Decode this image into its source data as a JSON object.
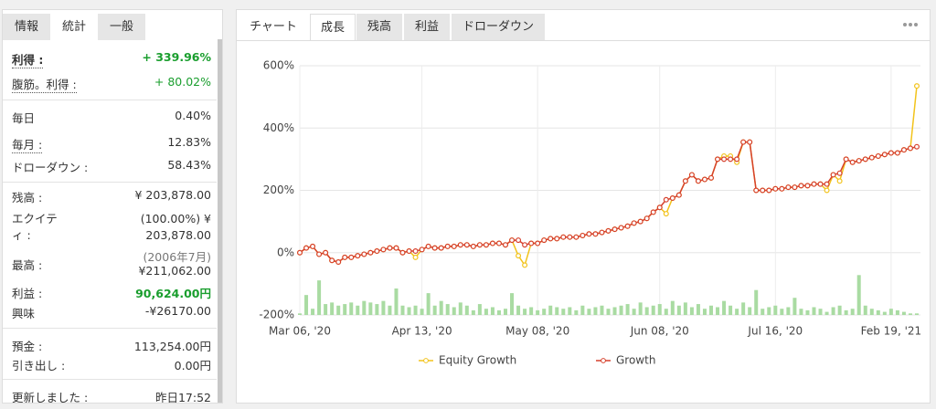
{
  "left_panel": {
    "tabs": [
      "情報",
      "統計",
      "一般"
    ],
    "rows": [
      {
        "label": "利得 :",
        "value": "+ 339.96%"
      },
      {
        "label": "腹筋。利得 :",
        "value": "+ 80.02%"
      },
      {
        "label": "毎日",
        "value": "0.40%"
      },
      {
        "label": "毎月 :",
        "value": "12.83%"
      },
      {
        "label": "ドローダウン :",
        "value": "58.43%"
      },
      {
        "label": "残高 :",
        "value": "¥ 203,878.00"
      },
      {
        "label": "エクイティ :",
        "value": "(100.00%) ¥ 203,878.00"
      },
      {
        "label": "最高 :",
        "note": "(2006年7月)",
        "value": "¥211,062.00"
      },
      {
        "label": "利益 :",
        "value": "90,624.00円"
      },
      {
        "label": "興味",
        "value": "-¥26170.00"
      },
      {
        "label": "預金 :",
        "value": "113,254.00円"
      },
      {
        "label": "引き出し :",
        "value": "0.00円"
      },
      {
        "label": "更新しました :",
        "value": "昨日17:52"
      }
    ]
  },
  "right_panel": {
    "tabs": [
      "チャート",
      "成長",
      "残高",
      "利益",
      "ドローダウン"
    ]
  },
  "chart_data": {
    "type": "line",
    "categories": [
      "Mar 06, '20",
      null,
      null,
      null,
      null,
      null,
      null,
      null,
      null,
      null,
      null,
      null,
      null,
      null,
      null,
      null,
      null,
      null,
      null,
      "Apr 13, '20",
      null,
      null,
      null,
      null,
      null,
      null,
      null,
      null,
      null,
      null,
      null,
      null,
      null,
      null,
      null,
      null,
      null,
      "May 08, '20",
      null,
      null,
      null,
      null,
      null,
      null,
      null,
      null,
      null,
      null,
      null,
      null,
      null,
      null,
      null,
      null,
      null,
      null,
      "Jun 08, '20",
      null,
      null,
      null,
      null,
      null,
      null,
      null,
      null,
      null,
      null,
      null,
      null,
      null,
      null,
      null,
      null,
      null,
      "Jul 16, '20",
      null,
      null,
      null,
      null,
      null,
      null,
      null,
      null,
      null,
      null,
      null,
      null,
      null,
      null,
      null,
      null,
      null,
      "Feb 19, '21",
      null,
      null,
      null,
      null
    ],
    "series": [
      {
        "name": "Equity Growth",
        "color": "#f2c31b",
        "values": [
          0,
          15,
          20,
          -5,
          0,
          -25,
          -30,
          -15,
          -15,
          -10,
          -5,
          0,
          5,
          10,
          15,
          15,
          0,
          5,
          -15,
          10,
          20,
          15,
          15,
          20,
          20,
          25,
          25,
          20,
          25,
          25,
          30,
          30,
          25,
          40,
          -10,
          -40,
          30,
          30,
          40,
          45,
          45,
          50,
          50,
          50,
          55,
          60,
          60,
          65,
          70,
          75,
          80,
          85,
          95,
          100,
          110,
          130,
          145,
          125,
          175,
          185,
          230,
          250,
          230,
          235,
          240,
          300,
          310,
          310,
          290,
          355,
          355,
          200,
          200,
          200,
          205,
          205,
          210,
          210,
          215,
          215,
          220,
          220,
          200,
          250,
          230,
          300,
          290,
          295,
          300,
          305,
          310,
          315,
          320,
          320,
          330,
          335,
          535
        ]
      },
      {
        "name": "Growth",
        "color": "#d6402c",
        "values": [
          0,
          15,
          20,
          -5,
          0,
          -25,
          -30,
          -15,
          -15,
          -10,
          -5,
          0,
          5,
          10,
          15,
          15,
          0,
          5,
          5,
          10,
          20,
          15,
          15,
          20,
          20,
          25,
          25,
          20,
          25,
          25,
          30,
          30,
          25,
          40,
          40,
          25,
          30,
          30,
          40,
          45,
          45,
          50,
          50,
          50,
          55,
          60,
          60,
          65,
          70,
          75,
          80,
          85,
          95,
          100,
          110,
          130,
          145,
          170,
          175,
          185,
          230,
          250,
          230,
          235,
          240,
          300,
          300,
          300,
          300,
          355,
          355,
          200,
          200,
          200,
          205,
          205,
          210,
          210,
          215,
          215,
          220,
          220,
          220,
          250,
          255,
          300,
          290,
          295,
          300,
          305,
          310,
          315,
          320,
          320,
          330,
          335,
          340
        ]
      }
    ],
    "bar_values": [
      5,
      64,
      20,
      111,
      35,
      40,
      30,
      35,
      40,
      30,
      45,
      40,
      35,
      45,
      30,
      85,
      30,
      25,
      30,
      20,
      70,
      30,
      45,
      35,
      25,
      40,
      30,
      15,
      35,
      20,
      25,
      15,
      20,
      70,
      30,
      20,
      25,
      15,
      20,
      30,
      25,
      20,
      25,
      15,
      30,
      20,
      25,
      30,
      20,
      25,
      30,
      35,
      20,
      40,
      25,
      30,
      35,
      20,
      45,
      30,
      40,
      25,
      35,
      20,
      30,
      25,
      45,
      30,
      20,
      40,
      25,
      80,
      20,
      25,
      30,
      20,
      25,
      55,
      20,
      15,
      25,
      20,
      10,
      25,
      30,
      15,
      20,
      128,
      30,
      20,
      15,
      10,
      20,
      15,
      10,
      5,
      5
    ],
    "bar_color": "#a9dba2",
    "ylim": [
      -200,
      600
    ],
    "yticks": [
      {
        "value": -200,
        "label": "-200%"
      },
      {
        "value": 0,
        "label": "0%"
      },
      {
        "value": 200,
        "label": "200%"
      },
      {
        "value": 400,
        "label": "400%"
      },
      {
        "value": 600,
        "label": "600%"
      }
    ],
    "grid": true,
    "legend": "bottom"
  }
}
